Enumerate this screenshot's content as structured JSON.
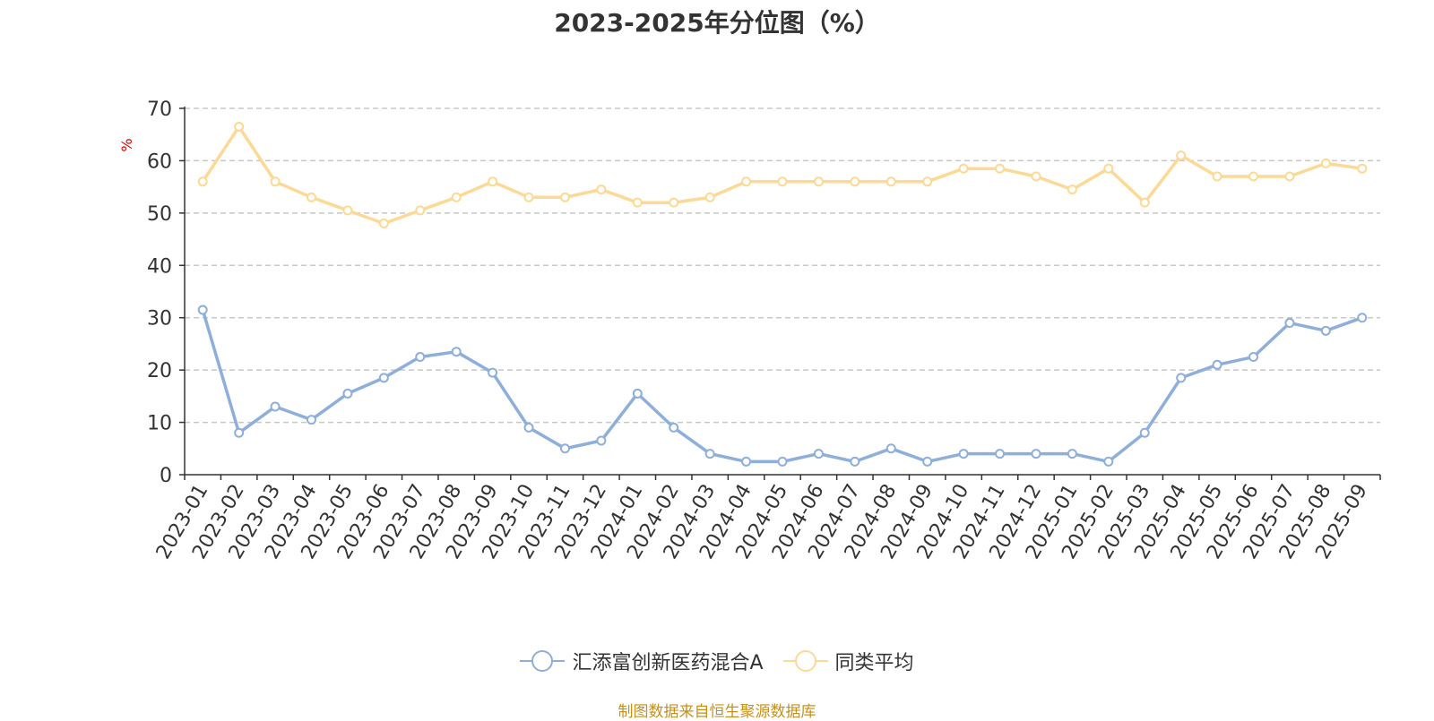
{
  "chart_data": {
    "type": "line",
    "title": "2023-2025年分位图（%）",
    "ylabel": "%",
    "ylim": [
      0,
      70
    ],
    "yticks": [
      0,
      10,
      20,
      30,
      40,
      50,
      60,
      70
    ],
    "grid": true,
    "legend_position": "bottom",
    "categories": [
      "2023-01",
      "2023-02",
      "2023-03",
      "2023-04",
      "2023-05",
      "2023-06",
      "2023-07",
      "2023-08",
      "2023-09",
      "2023-10",
      "2023-11",
      "2023-12",
      "2024-01",
      "2024-02",
      "2024-03",
      "2024-04",
      "2024-05",
      "2024-06",
      "2024-07",
      "2024-08",
      "2024-09",
      "2024-10",
      "2024-11",
      "2024-12",
      "2025-01",
      "2025-02",
      "2025-03",
      "2025-04",
      "2025-05",
      "2025-06",
      "2025-07",
      "2025-08",
      "2025-09"
    ],
    "series": [
      {
        "name": "汇添富创新医药混合A",
        "color": "#8eaedb",
        "values": [
          31.5,
          8.0,
          13.0,
          10.5,
          15.5,
          18.5,
          22.5,
          23.5,
          19.5,
          9.0,
          5.0,
          6.5,
          15.5,
          9.0,
          4.0,
          2.5,
          2.5,
          4.0,
          2.5,
          5.0,
          2.5,
          4.0,
          4.0,
          4.0,
          4.0,
          2.5,
          8.0,
          18.5,
          21.0,
          22.5,
          29.0,
          27.5,
          30.0
        ]
      },
      {
        "name": "同类平均",
        "color": "#fcd995",
        "values": [
          56.0,
          66.5,
          56.0,
          53.0,
          50.5,
          48.0,
          50.5,
          53.0,
          56.0,
          53.0,
          53.0,
          54.5,
          52.0,
          52.0,
          53.0,
          56.0,
          56.0,
          56.0,
          56.0,
          56.0,
          56.0,
          58.5,
          58.5,
          57.0,
          54.5,
          58.5,
          52.0,
          61.0,
          57.0,
          57.0,
          57.0,
          59.5,
          58.5
        ]
      }
    ]
  },
  "source_note": "制图数据来自恒生聚源数据库"
}
